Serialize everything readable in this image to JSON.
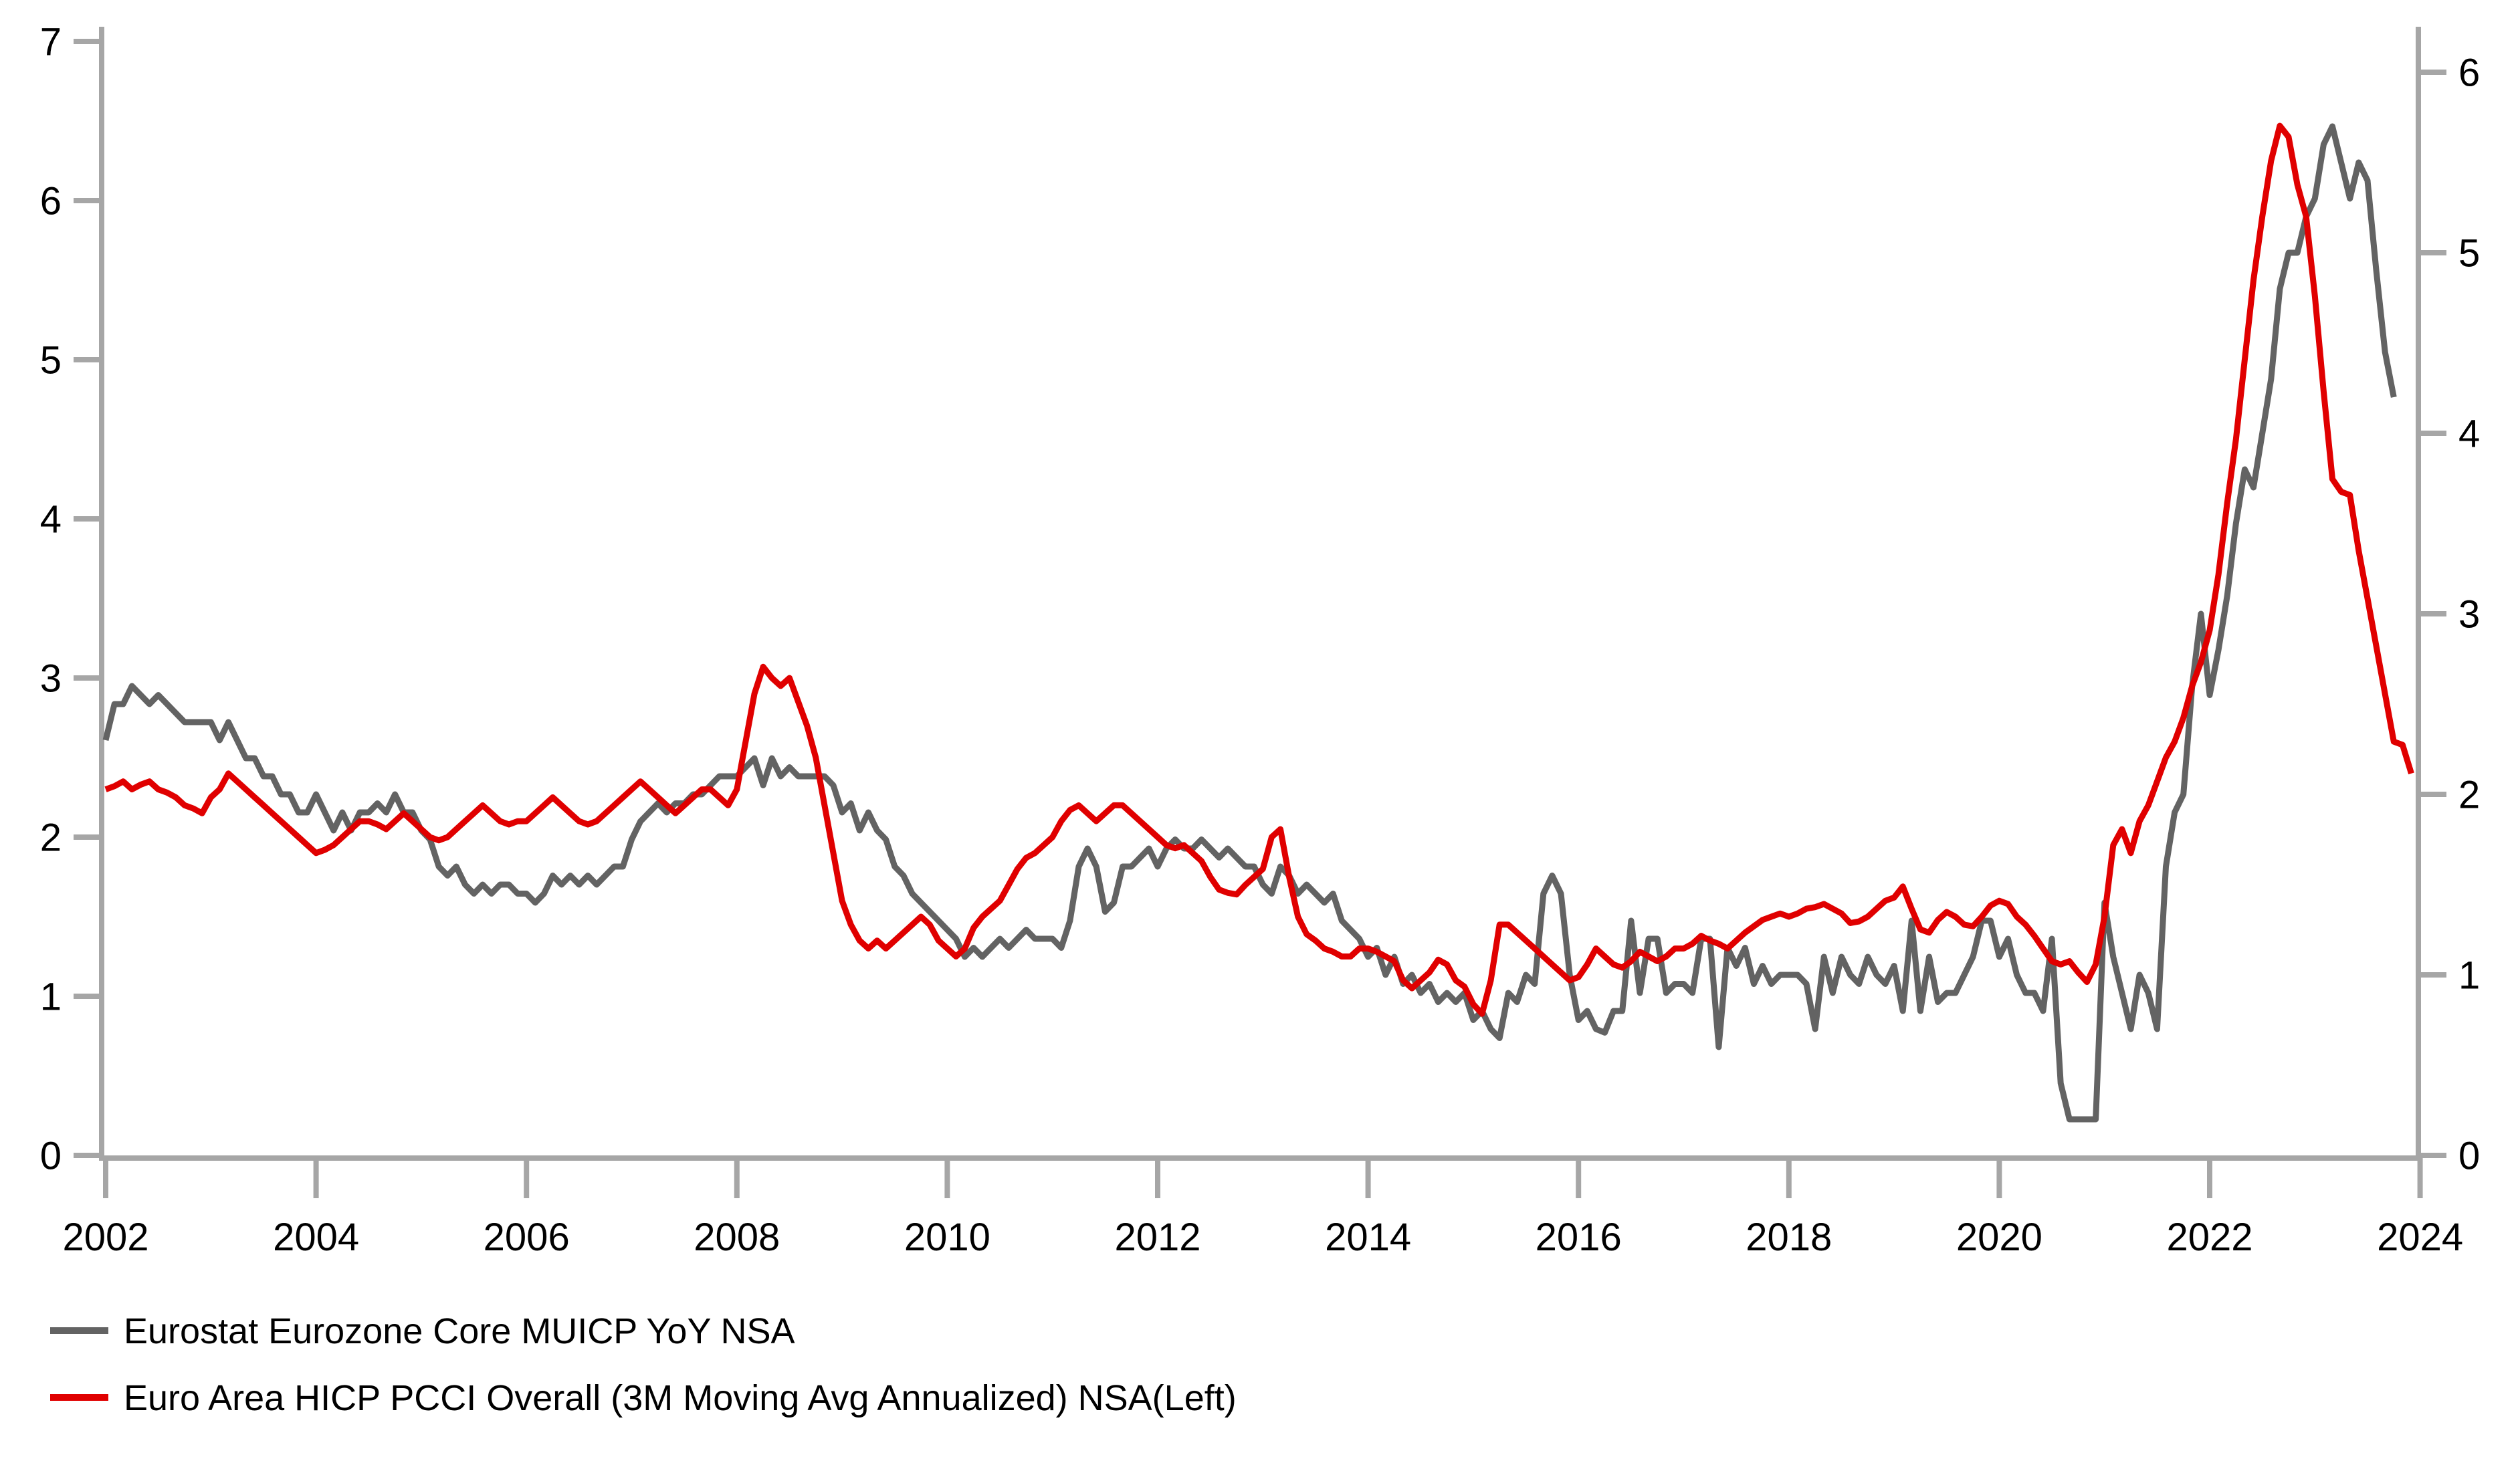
{
  "chart_data": {
    "type": "line",
    "title": "",
    "xlabel": "",
    "ylabel_left": "",
    "ylabel_right": "",
    "x_axis": {
      "tick_years": [
        2002,
        2004,
        2006,
        2008,
        2010,
        2012,
        2014,
        2016,
        2018,
        2020,
        2022,
        2024
      ],
      "range": [
        2002.0,
        2024.1
      ]
    },
    "left_axis": {
      "ticks": [
        0,
        1,
        2,
        3,
        4,
        5,
        6,
        7
      ],
      "range": [
        0,
        7
      ]
    },
    "right_axis": {
      "ticks": [
        0,
        1,
        2,
        3,
        4,
        5,
        6
      ],
      "range": [
        0,
        6
      ]
    },
    "grid": "off",
    "legend_position": "bottom-left",
    "series": [
      {
        "name": "Eurostat Eurozone Core MUICP YoY NSA",
        "axis": "right",
        "color": "#636363",
        "start_year": 2002,
        "start_month": 1,
        "frequency": "monthly",
        "values": [
          2.3,
          2.5,
          2.5,
          2.6,
          2.55,
          2.5,
          2.55,
          2.5,
          2.45,
          2.4,
          2.4,
          2.4,
          2.4,
          2.3,
          2.4,
          2.3,
          2.2,
          2.2,
          2.1,
          2.1,
          2.0,
          2.0,
          1.9,
          1.9,
          2.0,
          1.9,
          1.8,
          1.9,
          1.8,
          1.9,
          1.9,
          1.95,
          1.9,
          2.0,
          1.9,
          1.9,
          1.8,
          1.75,
          1.6,
          1.55,
          1.6,
          1.5,
          1.45,
          1.5,
          1.45,
          1.5,
          1.5,
          1.45,
          1.45,
          1.4,
          1.45,
          1.55,
          1.5,
          1.55,
          1.5,
          1.55,
          1.5,
          1.55,
          1.6,
          1.6,
          1.75,
          1.85,
          1.9,
          1.95,
          1.9,
          1.95,
          1.95,
          2.0,
          2.0,
          2.05,
          2.1,
          2.1,
          2.1,
          2.15,
          2.2,
          2.05,
          2.2,
          2.1,
          2.15,
          2.1,
          2.1,
          2.1,
          2.1,
          2.05,
          1.9,
          1.95,
          1.8,
          1.9,
          1.8,
          1.75,
          1.6,
          1.55,
          1.45,
          1.4,
          1.35,
          1.3,
          1.25,
          1.2,
          1.1,
          1.15,
          1.1,
          1.15,
          1.2,
          1.15,
          1.2,
          1.25,
          1.2,
          1.2,
          1.2,
          1.15,
          1.3,
          1.6,
          1.7,
          1.6,
          1.35,
          1.4,
          1.6,
          1.6,
          1.65,
          1.7,
          1.6,
          1.7,
          1.75,
          1.7,
          1.7,
          1.75,
          1.7,
          1.65,
          1.7,
          1.65,
          1.6,
          1.6,
          1.5,
          1.45,
          1.6,
          1.55,
          1.45,
          1.5,
          1.45,
          1.4,
          1.45,
          1.3,
          1.25,
          1.2,
          1.1,
          1.15,
          1.0,
          1.1,
          0.95,
          1.0,
          0.9,
          0.95,
          0.85,
          0.9,
          0.85,
          0.9,
          0.75,
          0.8,
          0.7,
          0.65,
          0.9,
          0.85,
          1.0,
          0.95,
          1.45,
          1.55,
          1.45,
          1.0,
          0.75,
          0.8,
          0.7,
          0.68,
          0.8,
          0.8,
          1.3,
          0.9,
          1.2,
          1.2,
          0.9,
          0.95,
          0.95,
          0.9,
          1.2,
          1.2,
          0.6,
          1.15,
          1.05,
          1.15,
          0.95,
          1.05,
          0.95,
          1.0,
          1.0,
          1.0,
          0.95,
          0.7,
          1.1,
          0.9,
          1.1,
          1.0,
          0.95,
          1.1,
          1.0,
          0.95,
          1.05,
          0.8,
          1.3,
          0.8,
          1.1,
          0.85,
          0.9,
          0.9,
          1.0,
          1.1,
          1.3,
          1.3,
          1.1,
          1.2,
          1.0,
          0.9,
          0.9,
          0.8,
          1.2,
          0.4,
          0.2,
          0.2,
          0.2,
          0.2,
          1.4,
          1.1,
          0.9,
          0.7,
          1.0,
          0.9,
          0.7,
          1.6,
          1.9,
          2.0,
          2.6,
          3.0,
          2.55,
          2.8,
          3.1,
          3.5,
          3.8,
          3.7,
          4.0,
          4.3,
          4.8,
          5.0,
          5.0,
          5.2,
          5.3,
          5.6,
          5.7,
          5.5,
          5.3,
          5.5,
          5.4,
          4.9,
          4.45,
          4.2
        ]
      },
      {
        "name": "Euro Area HICP PCCI Overall (3M Moving Avg Annualized) NSA(Left)",
        "axis": "left",
        "color": "#e00000",
        "start_year": 2002,
        "start_month": 1,
        "frequency": "monthly",
        "values": [
          2.3,
          2.32,
          2.35,
          2.3,
          2.33,
          2.35,
          2.3,
          2.28,
          2.25,
          2.2,
          2.18,
          2.15,
          2.25,
          2.3,
          2.4,
          2.35,
          2.3,
          2.25,
          2.2,
          2.15,
          2.1,
          2.05,
          2.0,
          1.95,
          1.9,
          1.92,
          1.95,
          2.0,
          2.05,
          2.1,
          2.1,
          2.08,
          2.05,
          2.1,
          2.15,
          2.1,
          2.05,
          2.0,
          1.98,
          2.0,
          2.05,
          2.1,
          2.15,
          2.2,
          2.15,
          2.1,
          2.08,
          2.1,
          2.1,
          2.15,
          2.2,
          2.25,
          2.2,
          2.15,
          2.1,
          2.08,
          2.1,
          2.15,
          2.2,
          2.25,
          2.3,
          2.35,
          2.3,
          2.25,
          2.2,
          2.15,
          2.2,
          2.25,
          2.3,
          2.3,
          2.25,
          2.2,
          2.3,
          2.6,
          2.9,
          3.07,
          3.0,
          2.95,
          3.0,
          2.85,
          2.7,
          2.5,
          2.2,
          1.9,
          1.6,
          1.45,
          1.35,
          1.3,
          1.35,
          1.3,
          1.35,
          1.4,
          1.45,
          1.5,
          1.45,
          1.35,
          1.3,
          1.25,
          1.3,
          1.43,
          1.5,
          1.55,
          1.6,
          1.7,
          1.8,
          1.87,
          1.9,
          1.95,
          2.0,
          2.1,
          2.17,
          2.2,
          2.15,
          2.1,
          2.15,
          2.2,
          2.2,
          2.15,
          2.1,
          2.05,
          2.0,
          1.95,
          1.93,
          1.95,
          1.9,
          1.85,
          1.75,
          1.67,
          1.65,
          1.64,
          1.7,
          1.75,
          1.8,
          2.0,
          2.05,
          1.75,
          1.5,
          1.39,
          1.35,
          1.3,
          1.28,
          1.25,
          1.25,
          1.3,
          1.3,
          1.28,
          1.25,
          1.22,
          1.1,
          1.05,
          1.1,
          1.15,
          1.23,
          1.2,
          1.1,
          1.06,
          0.95,
          0.89,
          1.1,
          1.45,
          1.45,
          1.4,
          1.35,
          1.3,
          1.25,
          1.2,
          1.15,
          1.1,
          1.12,
          1.2,
          1.3,
          1.25,
          1.2,
          1.18,
          1.22,
          1.28,
          1.25,
          1.22,
          1.25,
          1.3,
          1.3,
          1.33,
          1.38,
          1.35,
          1.33,
          1.3,
          1.35,
          1.4,
          1.44,
          1.48,
          1.5,
          1.52,
          1.5,
          1.52,
          1.55,
          1.56,
          1.58,
          1.55,
          1.52,
          1.46,
          1.47,
          1.5,
          1.55,
          1.6,
          1.62,
          1.69,
          1.55,
          1.42,
          1.4,
          1.48,
          1.53,
          1.5,
          1.45,
          1.44,
          1.5,
          1.57,
          1.6,
          1.58,
          1.5,
          1.45,
          1.38,
          1.3,
          1.22,
          1.2,
          1.22,
          1.15,
          1.09,
          1.2,
          1.5,
          1.95,
          2.05,
          1.9,
          2.1,
          2.2,
          2.35,
          2.5,
          2.6,
          2.75,
          2.95,
          3.1,
          3.3,
          3.65,
          4.1,
          4.5,
          5.0,
          5.5,
          5.9,
          6.25,
          6.47,
          6.4,
          6.1,
          5.9,
          5.4,
          4.8,
          4.25,
          4.17,
          4.15,
          3.8,
          3.5,
          3.2,
          2.9,
          2.6,
          2.58,
          2.4
        ]
      }
    ]
  },
  "legend": {
    "items": [
      {
        "label": "Eurostat Eurozone Core MUICP YoY NSA",
        "color": "#636363"
      },
      {
        "label": "Euro Area HICP PCCI Overall (3M Moving Avg Annualized) NSA(Left)",
        "color": "#e00000"
      }
    ]
  },
  "style_colors": {
    "axis": "#a6a6a6",
    "tick_label": "#000000",
    "background": "#ffffff"
  }
}
